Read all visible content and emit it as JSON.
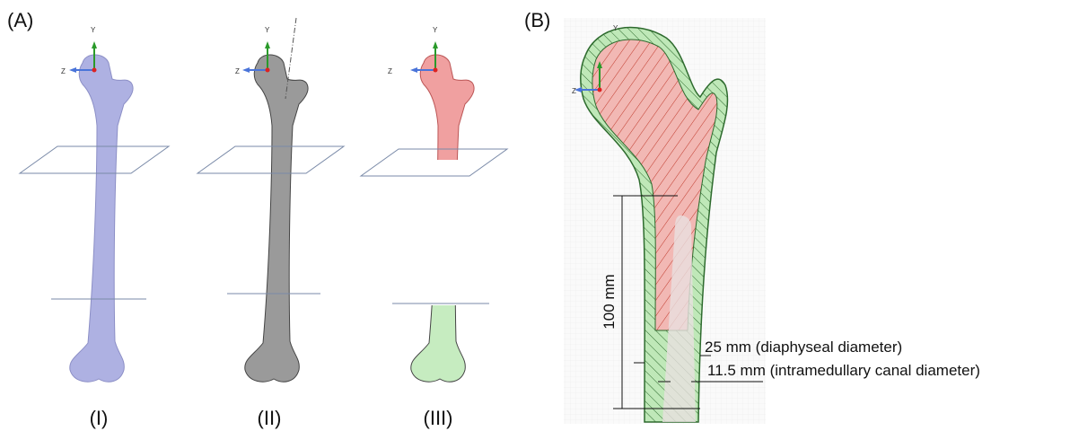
{
  "panel_a": {
    "label": "(A)",
    "axis_labels": {
      "y": "Y",
      "z": "Z"
    },
    "models": [
      {
        "label": "(I)"
      },
      {
        "label": "(II)"
      },
      {
        "label": "(III)"
      }
    ]
  },
  "panel_b": {
    "label": "(B)",
    "axis_labels": {
      "y": "Y",
      "z": "Z"
    },
    "length_label": "100 mm",
    "diaphyseal_label": "25 mm (diaphyseal diameter)",
    "canal_label": "11.5 mm (intramedullary canal diameter)"
  }
}
